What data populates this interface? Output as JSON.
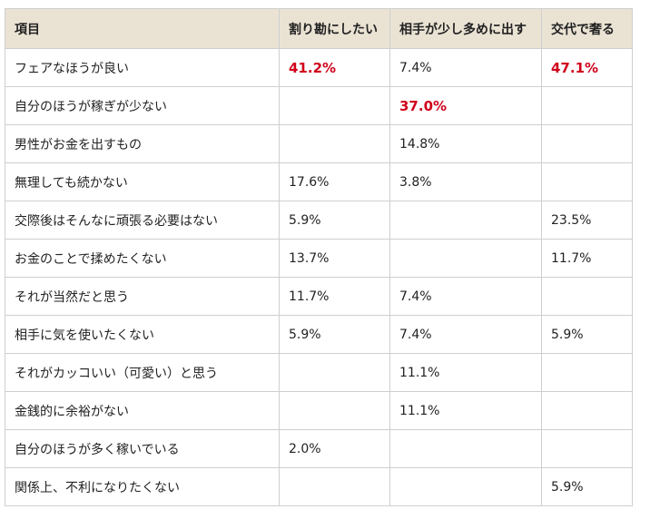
{
  "colors": {
    "header_bg": "#eae3d4",
    "border": "#cfcfcf",
    "text": "#222222",
    "highlight": "#d0021b"
  },
  "table": {
    "headers": [
      "項目",
      "割り勘にしたい",
      "相手が少し多めに出す",
      "交代で奢る"
    ],
    "rows": [
      {
        "label": "フェアなほうが良い",
        "cells": [
          "41.2%",
          "7.4%",
          "47.1%"
        ],
        "highlight": [
          true,
          false,
          true
        ]
      },
      {
        "label": "自分のほうが稼ぎが少ない",
        "cells": [
          "",
          "37.0%",
          ""
        ],
        "highlight": [
          false,
          true,
          false
        ]
      },
      {
        "label": "男性がお金を出すもの",
        "cells": [
          "",
          "14.8%",
          ""
        ],
        "highlight": [
          false,
          false,
          false
        ]
      },
      {
        "label": "無理しても続かない",
        "cells": [
          "17.6%",
          "3.8%",
          ""
        ],
        "highlight": [
          false,
          false,
          false
        ]
      },
      {
        "label": "交際後はそんなに頑張る必要はない",
        "cells": [
          "5.9%",
          "",
          "23.5%"
        ],
        "highlight": [
          false,
          false,
          false
        ]
      },
      {
        "label": "お金のことで揉めたくない",
        "cells": [
          "13.7%",
          "",
          "11.7%"
        ],
        "highlight": [
          false,
          false,
          false
        ]
      },
      {
        "label": "それが当然だと思う",
        "cells": [
          "11.7%",
          "7.4%",
          ""
        ],
        "highlight": [
          false,
          false,
          false
        ]
      },
      {
        "label": "相手に気を使いたくない",
        "cells": [
          "5.9%",
          "7.4%",
          "5.9%"
        ],
        "highlight": [
          false,
          false,
          false
        ]
      },
      {
        "label": "それがカッコいい（可愛い）と思う",
        "cells": [
          "",
          "11.1%",
          ""
        ],
        "highlight": [
          false,
          false,
          false
        ]
      },
      {
        "label": "金銭的に余裕がない",
        "cells": [
          "",
          "11.1%",
          ""
        ],
        "highlight": [
          false,
          false,
          false
        ]
      },
      {
        "label": "自分のほうが多く稼いでいる",
        "cells": [
          "2.0%",
          "",
          ""
        ],
        "highlight": [
          false,
          false,
          false
        ]
      },
      {
        "label": "関係上、不利になりたくない",
        "cells": [
          "",
          "",
          "5.9%"
        ],
        "highlight": [
          false,
          false,
          false
        ]
      }
    ]
  }
}
